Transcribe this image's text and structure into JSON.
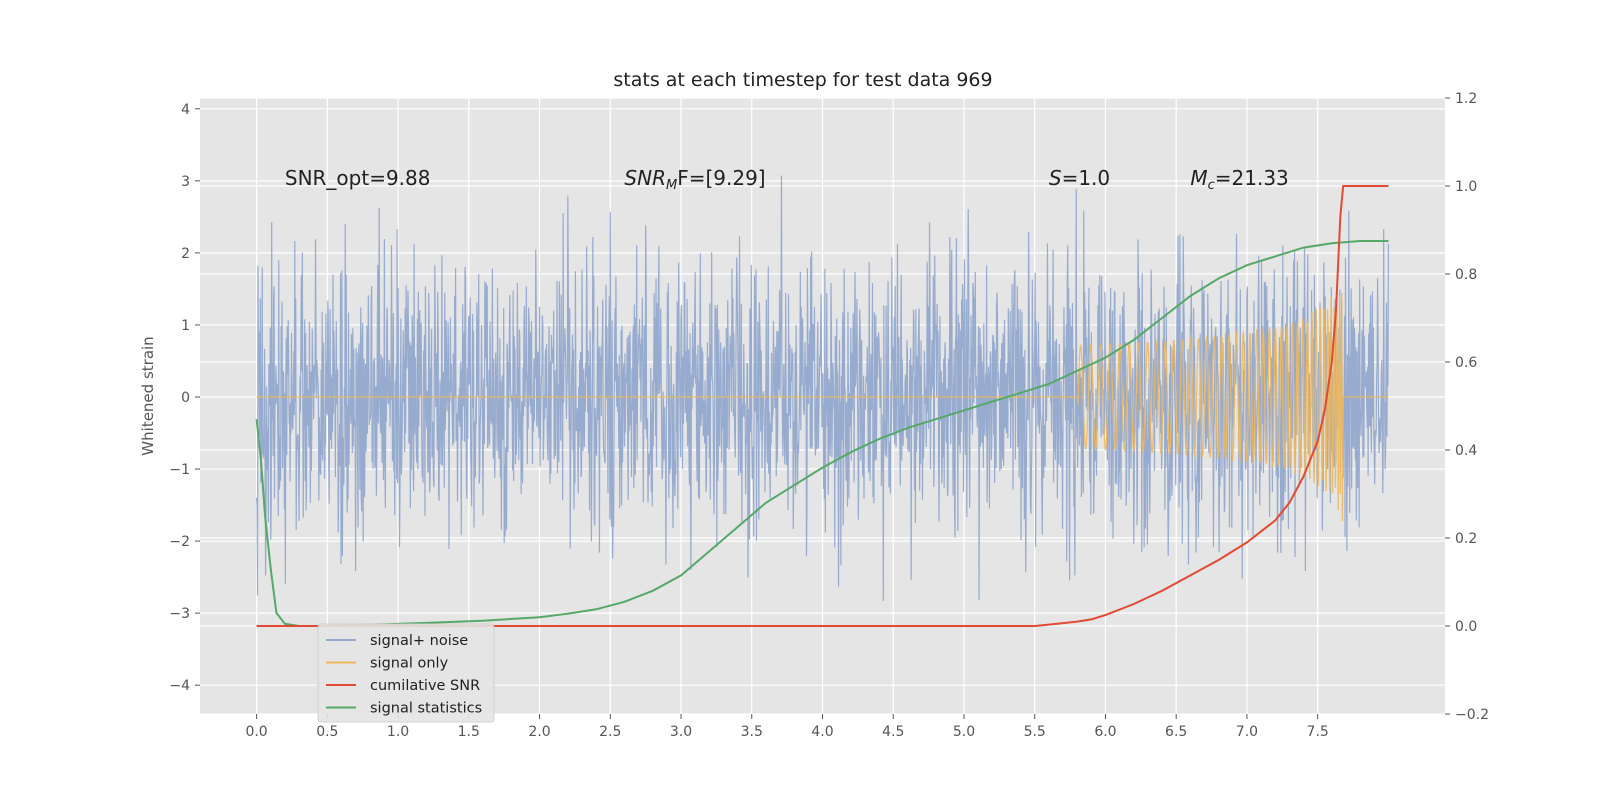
{
  "chart_data": {
    "type": "line",
    "title": "stats at each timestep for test data 969",
    "ylabel": "Whitened strain",
    "x_ticks": [
      "0.0",
      "0.5",
      "1.0",
      "1.5",
      "2.0",
      "2.5",
      "3.0",
      "3.5",
      "4.0",
      "4.5",
      "5.0",
      "5.5",
      "6.0",
      "6.5",
      "7.0",
      "7.5"
    ],
    "y_left_ticks": [
      "−4",
      "−3",
      "−2",
      "−1",
      "0",
      "1",
      "2",
      "3",
      "4"
    ],
    "y_right_ticks": [
      "−0.2",
      "0.0",
      "0.2",
      "0.4",
      "0.6",
      "0.8",
      "1.0",
      "1.2"
    ],
    "xlim": [
      -0.4,
      8.4
    ],
    "ylim_left": [
      -4.4,
      4.15
    ],
    "ylim_right": [
      -0.2,
      1.2
    ],
    "grid": true,
    "legend_position": "lower-left",
    "annotations": [
      {
        "plain": "SNR_opt=9.88",
        "x": 0.2,
        "y": 3.0
      },
      {
        "sym": "SNR",
        "sub": "M",
        "rest": "F=[9.29]",
        "x": 2.6,
        "y": 3.0
      },
      {
        "sym": "S",
        "sub": "",
        "rest": "=1.0",
        "x": 5.6,
        "y": 3.0
      },
      {
        "sym": "M",
        "sub": "c",
        "rest": "=21.33",
        "x": 6.6,
        "y": 3.0
      }
    ],
    "series": [
      {
        "name": "signal+ noise",
        "color": "#92a8cd",
        "axis": "left",
        "description": "white noise, std ~1, t from 0 to 8"
      },
      {
        "name": "signal only",
        "color": "#eeb75b",
        "axis": "left",
        "chirp_start": 5.8,
        "merger_time": 7.68,
        "peak_amplitude": 1.8
      },
      {
        "name": "cumilative SNR",
        "color": "#e24a33",
        "axis": "right",
        "x": [
          0.0,
          5.5,
          5.6,
          5.8,
          5.9,
          6.0,
          6.2,
          6.4,
          6.6,
          6.8,
          7.0,
          7.2,
          7.3,
          7.4,
          7.5,
          7.55,
          7.6,
          7.63,
          7.66,
          7.68,
          8.0
        ],
        "values": [
          0.0,
          0.0,
          0.003,
          0.01,
          0.015,
          0.025,
          0.05,
          0.08,
          0.115,
          0.15,
          0.19,
          0.24,
          0.28,
          0.34,
          0.42,
          0.49,
          0.6,
          0.72,
          0.93,
          1.0,
          1.0
        ]
      },
      {
        "name": "signal statistics",
        "color": "#55a868",
        "axis": "right",
        "x": [
          0.0,
          0.03,
          0.06,
          0.1,
          0.14,
          0.2,
          0.3,
          0.5,
          0.8,
          1.2,
          1.6,
          2.0,
          2.2,
          2.4,
          2.6,
          2.8,
          3.0,
          3.2,
          3.4,
          3.6,
          3.8,
          4.0,
          4.2,
          4.4,
          4.6,
          4.8,
          5.0,
          5.2,
          5.4,
          5.6,
          5.8,
          6.0,
          6.2,
          6.4,
          6.6,
          6.8,
          7.0,
          7.2,
          7.4,
          7.6,
          7.8,
          8.0
        ],
        "values": [
          0.47,
          0.38,
          0.25,
          0.13,
          0.03,
          0.005,
          0.0,
          0.0,
          0.003,
          0.007,
          0.012,
          0.02,
          0.028,
          0.038,
          0.055,
          0.08,
          0.115,
          0.17,
          0.225,
          0.28,
          0.32,
          0.36,
          0.395,
          0.425,
          0.45,
          0.47,
          0.49,
          0.51,
          0.53,
          0.55,
          0.58,
          0.61,
          0.65,
          0.7,
          0.75,
          0.79,
          0.82,
          0.84,
          0.86,
          0.87,
          0.875,
          0.875
        ]
      }
    ]
  }
}
